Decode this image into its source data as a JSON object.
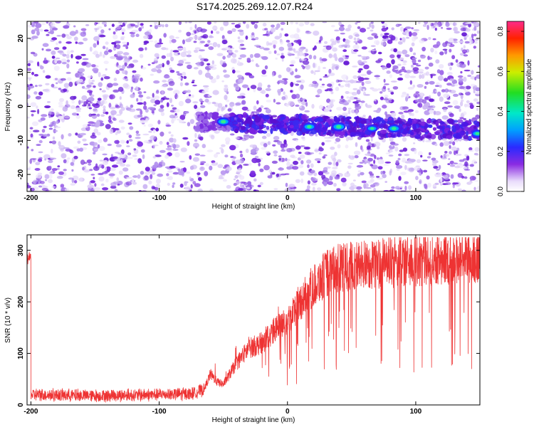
{
  "title": "S174.2025.269.12.07.R24",
  "colors": {
    "line": "#ee3333",
    "spectrogram_light": "#c9b2f2",
    "spectrogram_dark": "#7a2de0"
  },
  "chart_data": [
    {
      "type": "heatmap",
      "xlabel": "Height of straight line (km)",
      "ylabel": "Frequency (Hz)",
      "xlim": [
        -203,
        150
      ],
      "ylim": [
        -25,
        25
      ],
      "xticks": [
        -200,
        -100,
        0,
        100
      ],
      "yticks": [
        -20,
        -10,
        0,
        10,
        20
      ],
      "band": {
        "frequency": -6,
        "x_start": -70,
        "x_end": 150,
        "hotspots": [
          {
            "x": -50,
            "y": -4.5,
            "level": 0.5
          },
          {
            "x": 17,
            "y": -6,
            "level": 0.45
          },
          {
            "x": 40,
            "y": -6,
            "level": 0.55
          },
          {
            "x": 66,
            "y": -6.5,
            "level": 0.3
          },
          {
            "x": 83,
            "y": -6.5,
            "level": 0.45
          },
          {
            "x": 148,
            "y": -8,
            "level": 0.35
          }
        ]
      },
      "colorbar": {
        "label": "Normalized spectral amplitude",
        "range": [
          0,
          0.85
        ],
        "ticks": [
          "0.0",
          "0.2",
          "0.4",
          "0.6",
          "0.8"
        ]
      }
    },
    {
      "type": "line",
      "xlabel": "Height of straight line (km)",
      "ylabel": "SNR (10 * v/v)",
      "xlim": [
        -203,
        150
      ],
      "ylim": [
        0,
        330
      ],
      "xticks": [
        -200,
        -100,
        0,
        100
      ],
      "yticks": [
        0,
        100,
        200,
        300
      ],
      "series": [
        {
          "x": [
            -200,
            -150,
            -100,
            -75,
            -65,
            -60,
            -55,
            -50,
            -40,
            -30,
            -20,
            -10,
            0,
            10,
            20,
            30,
            40,
            50,
            75,
            100,
            125,
            150
          ],
          "y": [
            20,
            18,
            20,
            22,
            30,
            60,
            45,
            40,
            80,
            110,
            120,
            145,
            165,
            200,
            230,
            255,
            265,
            270,
            275,
            280,
            285,
            285
          ]
        }
      ]
    }
  ]
}
